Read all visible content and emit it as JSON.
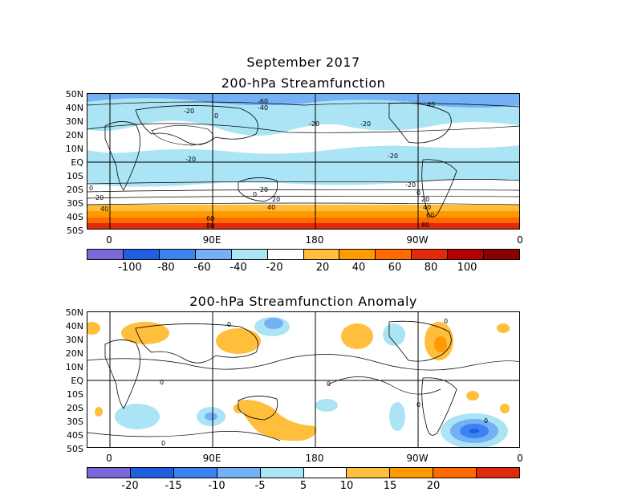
{
  "figure": {
    "title": "September 2017",
    "panel1_title": "200-hPa Streamfunction",
    "panel2_title": "200-hPa Streamfunction Anomaly"
  },
  "axes": {
    "lat_labels": [
      "50N",
      "40N",
      "30N",
      "20N",
      "10N",
      "EQ",
      "10S",
      "20S",
      "30S",
      "40S",
      "50S"
    ],
    "lon_labels": [
      "0",
      "90E",
      "180",
      "90W",
      "0"
    ]
  },
  "panel1": {
    "contour_labels": [
      "-60",
      "-40",
      "-20",
      "-20",
      "-20",
      "0",
      "-20",
      "-20",
      "-40",
      "0",
      "0",
      "20",
      "40",
      "60",
      "80",
      "-20",
      "-20",
      "0",
      "20",
      "40",
      "60",
      "80",
      "20",
      "40"
    ],
    "colorbar_labels": [
      "-100",
      "-80",
      "-60",
      "-40",
      "-20",
      "20",
      "40",
      "60",
      "80",
      "100"
    ],
    "colors": [
      "#7a68d8",
      "#1f5ee0",
      "#3a83f0",
      "#74b0f5",
      "#aae4f5",
      "#ffffff",
      "#ffbe3c",
      "#ff9a00",
      "#ff6a00",
      "#e02a0a",
      "#b40000",
      "#8a0000"
    ]
  },
  "panel2": {
    "contour_labels": [
      "0",
      "0",
      "0",
      "0",
      "0",
      "0",
      "0"
    ],
    "colorbar_labels": [
      "-20",
      "-15",
      "-10",
      "-5",
      "5",
      "10",
      "15",
      "20"
    ],
    "colors": [
      "#7a68d8",
      "#1f5ee0",
      "#3a83f0",
      "#74b0f5",
      "#aae4f5",
      "#ffffff",
      "#ffbe3c",
      "#ff9a00",
      "#ff6a00",
      "#e02a0a"
    ]
  }
}
